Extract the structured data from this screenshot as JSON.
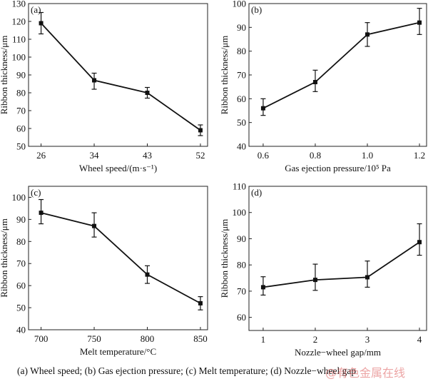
{
  "caption": "(a)  Wheel  speed;  (b)  Gas ejection pressure; (c) Melt temperature; (d) Nozzle−wheel gap",
  "watermark": "@有色金属在线",
  "chart_data": [
    {
      "type": "line",
      "panel": "(a)",
      "xlabel": "Wheel speed/(m·s⁻¹)",
      "ylabel": "Ribbon thickness/μm",
      "categories": [
        "26",
        "34",
        "43",
        "52"
      ],
      "values": [
        119,
        87,
        80,
        59
      ],
      "err_low": [
        113,
        82,
        77,
        56
      ],
      "err_high": [
        125,
        91,
        83,
        62
      ],
      "ylim": [
        50,
        130
      ],
      "yticks": [
        50,
        60,
        70,
        80,
        90,
        100,
        110,
        120,
        130
      ],
      "grid": false
    },
    {
      "type": "line",
      "panel": "(b)",
      "xlabel": "Gas ejection pressure/10⁵ Pa",
      "ylabel": "Ribbon thickness/μm",
      "categories": [
        "0.6",
        "0.8",
        "1.0",
        "1.2"
      ],
      "values": [
        56,
        67,
        87,
        92
      ],
      "err_low": [
        53,
        63,
        82,
        87
      ],
      "err_high": [
        60,
        72,
        92,
        98
      ],
      "ylim": [
        40,
        100
      ],
      "yticks": [
        40,
        50,
        60,
        70,
        80,
        90,
        100
      ],
      "grid": false
    },
    {
      "type": "line",
      "panel": "(c)",
      "xlabel": "Melt temperature/°C",
      "ylabel": "Ribbon thickness/μm",
      "categories": [
        "700",
        "750",
        "800",
        "850"
      ],
      "values": [
        93,
        87,
        65,
        52
      ],
      "err_low": [
        88,
        82,
        61,
        49
      ],
      "err_high": [
        99,
        93,
        69,
        55
      ],
      "ylim": [
        40,
        105
      ],
      "yticks": [
        40,
        50,
        60,
        70,
        80,
        90,
        100
      ],
      "grid": false
    },
    {
      "type": "line",
      "panel": "(d)",
      "xlabel": "Nozzle−wheel gap/mm",
      "ylabel": "Ribbon thickness/μm",
      "categories": [
        "1",
        "2",
        "3",
        "4"
      ],
      "values": [
        71.5,
        74.3,
        75.3,
        88.7
      ],
      "err_low": [
        68.5,
        70.3,
        71.5,
        83.7
      ],
      "err_high": [
        75.5,
        80.3,
        81.5,
        95.7
      ],
      "ylim": [
        55,
        110
      ],
      "yticks": [
        60,
        70,
        80,
        90,
        100,
        110
      ],
      "grid": false
    }
  ]
}
